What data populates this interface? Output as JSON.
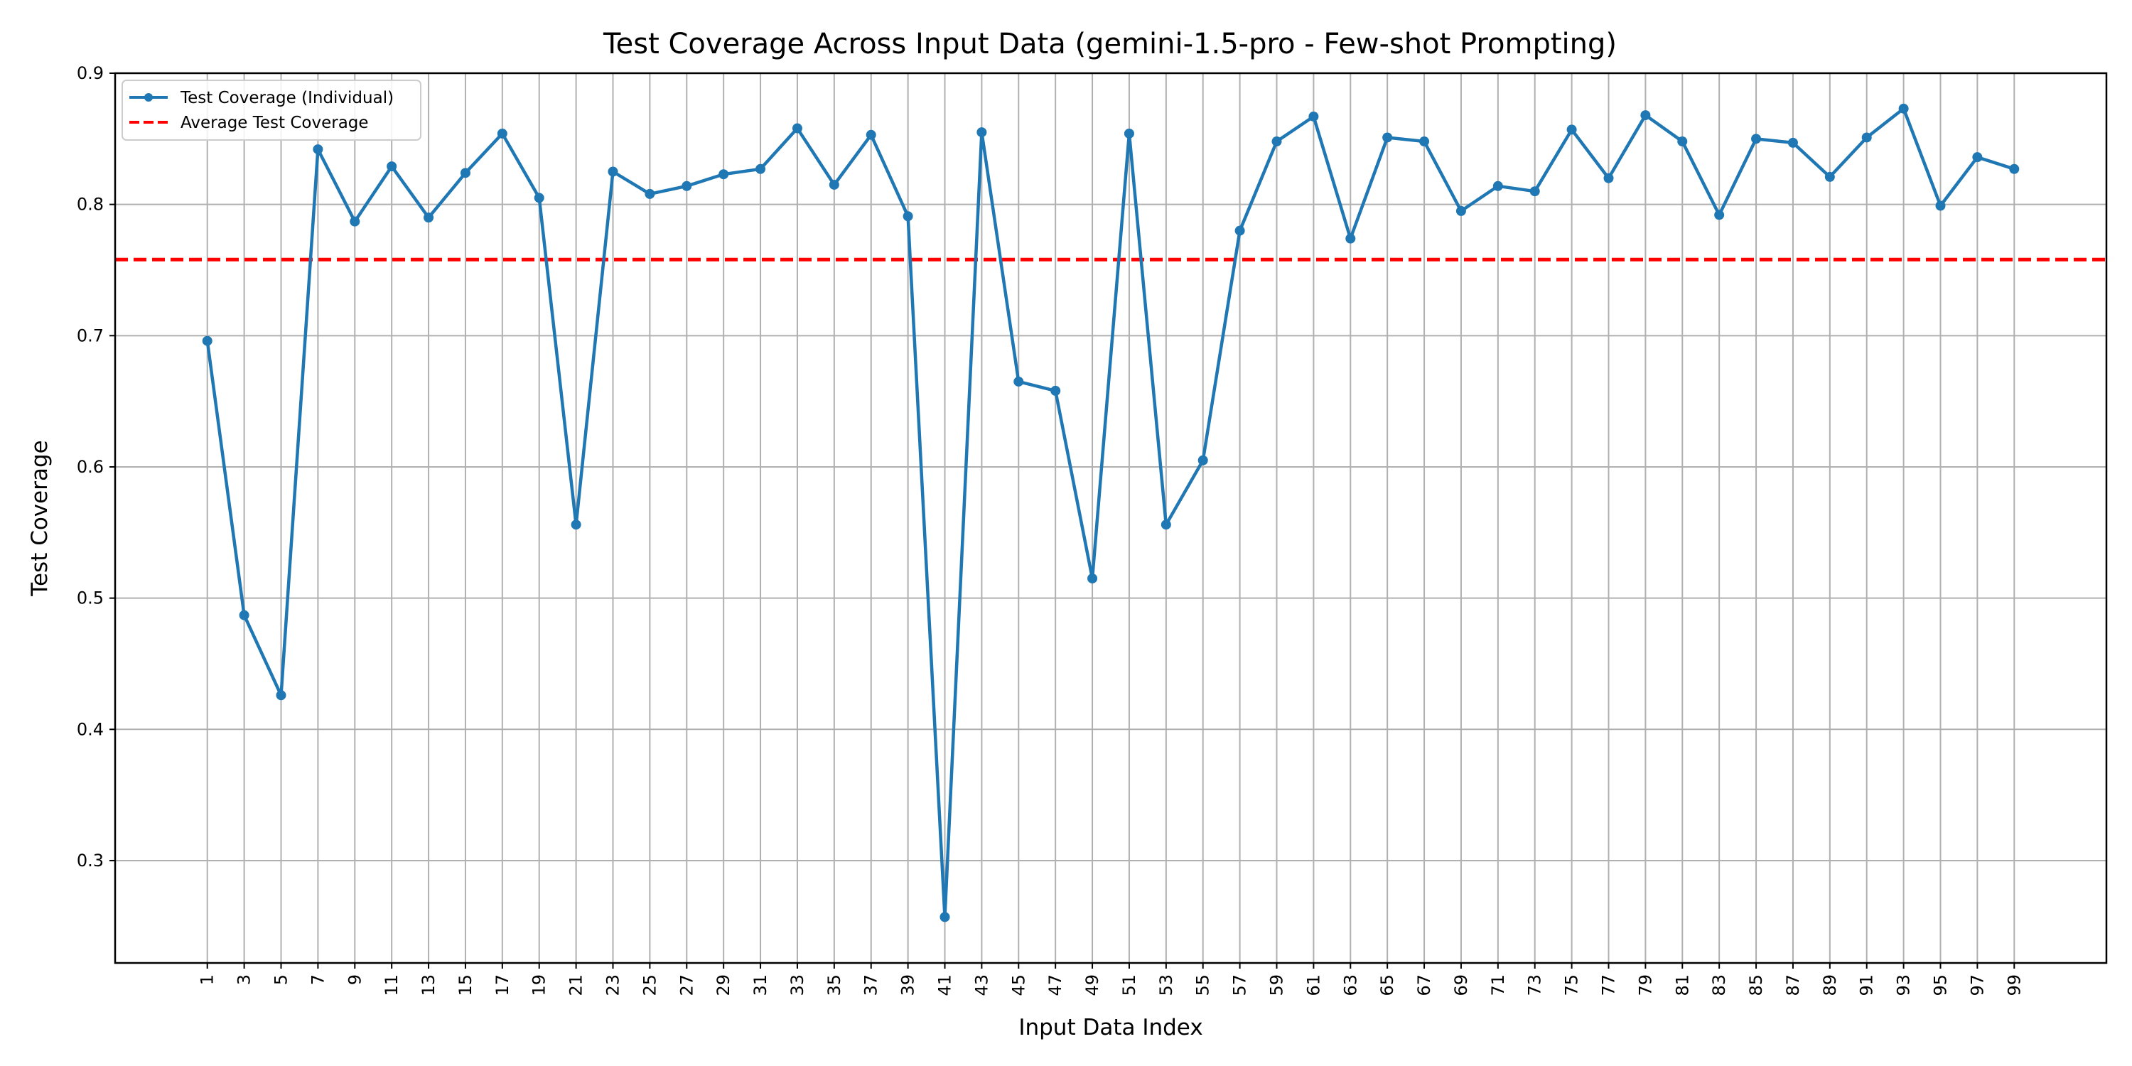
{
  "chart_data": {
    "type": "line",
    "title": "Test Coverage Across Input Data (gemini-1.5-pro - Few-shot Prompting)",
    "xlabel": "Input Data Index",
    "ylabel": "Test Coverage",
    "x": [
      1,
      3,
      5,
      7,
      9,
      11,
      13,
      15,
      17,
      19,
      21,
      23,
      25,
      27,
      29,
      31,
      33,
      35,
      37,
      39,
      41,
      43,
      45,
      47,
      49,
      51,
      53,
      55,
      57,
      59,
      61,
      63,
      65,
      67,
      69,
      71,
      73,
      75,
      77,
      79,
      81,
      83,
      85,
      87,
      89,
      91,
      93,
      95,
      97,
      99
    ],
    "xlim": [
      -4,
      104
    ],
    "ylim": [
      0.222,
      0.9
    ],
    "y_ticks": [
      0.3,
      0.4,
      0.5,
      0.6,
      0.7,
      0.8,
      0.9
    ],
    "y_tick_labels": [
      "0.3",
      "0.4",
      "0.5",
      "0.6",
      "0.7",
      "0.8",
      "0.9"
    ],
    "grid": true,
    "legend_position": "top-left",
    "series": [
      {
        "name": "Test Coverage (Individual)",
        "color": "#1f77b4",
        "style": "solid",
        "marker": "circle",
        "values": [
          0.696,
          0.487,
          0.426,
          0.842,
          0.787,
          0.829,
          0.79,
          0.824,
          0.854,
          0.805,
          0.556,
          0.825,
          0.808,
          0.814,
          0.823,
          0.827,
          0.858,
          0.815,
          0.853,
          0.791,
          0.257,
          0.855,
          0.665,
          0.658,
          0.515,
          0.854,
          0.556,
          0.605,
          0.78,
          0.848,
          0.867,
          0.774,
          0.851,
          0.848,
          0.795,
          0.814,
          0.81,
          0.857,
          0.82,
          0.868,
          0.848,
          0.792,
          0.85,
          0.847,
          0.821,
          0.851,
          0.873,
          0.799,
          0.836,
          0.827
        ]
      }
    ],
    "reference_lines": [
      {
        "name": "Average Test Coverage",
        "color": "#ff0000",
        "style": "dashed",
        "y": 0.758
      }
    ]
  }
}
